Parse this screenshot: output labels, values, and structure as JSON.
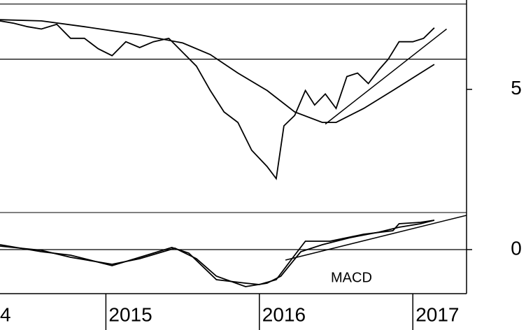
{
  "chart_data": [
    {
      "type": "line",
      "xlim": [
        2014.31,
        2017.35
      ],
      "ylim": [
        2.9,
        6.54
      ],
      "yticks": [
        5
      ],
      "hlines": [
        5.52,
        6.47
      ],
      "series": [
        {
          "color": "#000000",
          "x": [
            2014.31,
            2014.4,
            2014.49,
            2014.58,
            2014.68,
            2014.77,
            2014.86,
            2014.95,
            2015.04,
            2015.13,
            2015.22,
            2015.31,
            2015.41,
            2015.5,
            2015.59,
            2015.68,
            2015.77,
            2015.86,
            2015.95,
            2016.05,
            2016.11,
            2016.16,
            2016.23,
            2016.3,
            2016.36,
            2016.43,
            2016.5,
            2016.57,
            2016.64,
            2016.71,
            2016.78,
            2016.84,
            2016.91,
            2017.0,
            2017.07,
            2017.14
          ],
          "values": [
            6.18,
            6.14,
            6.08,
            6.04,
            6.12,
            5.88,
            5.88,
            5.7,
            5.58,
            5.82,
            5.72,
            5.82,
            5.88,
            5.64,
            5.4,
            4.98,
            4.61,
            4.43,
            3.95,
            3.67,
            3.46,
            4.37,
            4.55,
            4.98,
            4.73,
            4.92,
            4.67,
            5.22,
            5.28,
            5.1,
            5.34,
            5.52,
            5.82,
            5.82,
            5.88,
            6.06
          ]
        },
        {
          "color": "#000000",
          "x": [
            2014.31,
            2014.58,
            2014.86,
            2015.22,
            2015.5,
            2015.68,
            2015.86,
            2016.05,
            2016.23,
            2016.41,
            2016.5,
            2016.68,
            2016.87,
            2017.05,
            2017.14
          ],
          "values": [
            6.2,
            6.18,
            6.08,
            5.94,
            5.8,
            5.6,
            5.28,
            4.98,
            4.61,
            4.43,
            4.43,
            4.67,
            4.98,
            5.28,
            5.43
          ]
        }
      ],
      "trendlines": [
        {
          "x": [
            2016.43,
            2017.22
          ],
          "values": [
            4.4,
            6.04
          ]
        }
      ]
    },
    {
      "type": "line",
      "annotation": "MACD",
      "xlim": [
        2014.31,
        2017.35
      ],
      "ylim": [
        -1.16,
        1.04
      ],
      "yticks": [
        0
      ],
      "xticks": [
        {
          "value": 2014,
          "label": "4"
        },
        2015,
        2016,
        2017
      ],
      "series": [
        {
          "color": "#000000",
          "x": [
            2014.31,
            2014.58,
            2014.77,
            2015.04,
            2015.22,
            2015.43,
            2015.54,
            2015.72,
            2015.91,
            2016.0,
            2016.11,
            2016.23,
            2016.3,
            2016.46,
            2016.68,
            2016.87,
            2016.91,
            2017.05,
            2017.14
          ],
          "values": [
            0.14,
            -0.06,
            -0.16,
            -0.46,
            -0.22,
            0.06,
            -0.1,
            -0.86,
            -0.96,
            -1.0,
            -0.86,
            -0.16,
            0.24,
            0.24,
            0.44,
            0.54,
            0.74,
            0.78,
            0.84
          ]
        },
        {
          "color": "#000000",
          "x": [
            2014.31,
            2014.58,
            2014.77,
            2015.04,
            2015.22,
            2015.45,
            2015.59,
            2015.72,
            2015.91,
            2016.05,
            2016.14,
            2016.27,
            2016.41,
            2016.59,
            2016.78,
            2016.91,
            2017.05,
            2017.14
          ],
          "values": [
            0.1,
            -0.02,
            -0.22,
            -0.42,
            -0.26,
            0.04,
            -0.26,
            -0.76,
            -1.06,
            -0.96,
            -0.76,
            -0.06,
            0.14,
            0.34,
            0.5,
            0.64,
            0.74,
            0.84
          ]
        }
      ],
      "trendlines": [
        {
          "x": [
            2016.17,
            2017.35
          ],
          "values": [
            -0.3,
            0.98
          ]
        }
      ]
    }
  ]
}
